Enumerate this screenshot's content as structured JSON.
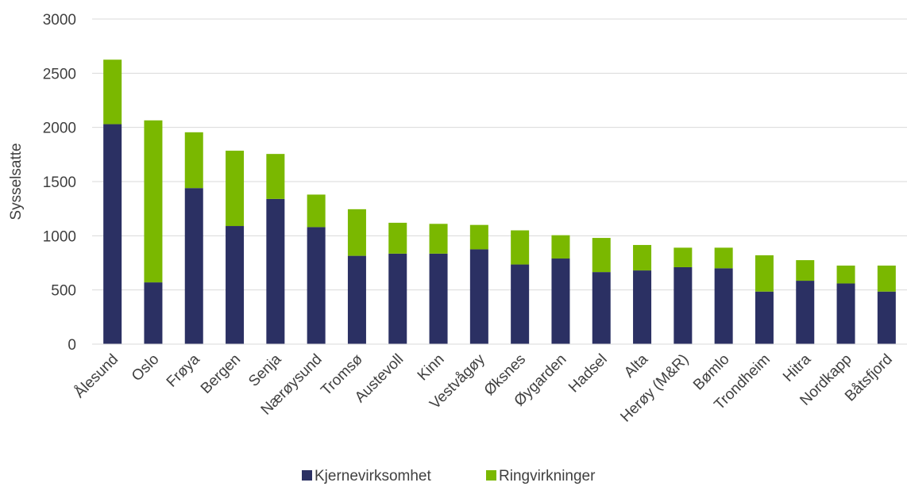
{
  "chart_data": {
    "type": "bar",
    "stacked": true,
    "title": "",
    "xlabel": "",
    "ylabel": "Sysselsatte",
    "ylim": [
      0,
      3000
    ],
    "yticks": [
      0,
      500,
      1000,
      1500,
      2000,
      2500,
      3000
    ],
    "grid": true,
    "legend_position": "bottom",
    "categories": [
      "Ålesund",
      "Oslo",
      "Frøya",
      "Bergen",
      "Senja",
      "Nærøysund",
      "Tromsø",
      "Austevoll",
      "Kinn",
      "Vestvågøy",
      "Øksnes",
      "Øygarden",
      "Hadsel",
      "Alta",
      "Herøy (M&R)",
      "Bømlo",
      "Trondheim",
      "Hitra",
      "Nordkapp",
      "Båtsfjord"
    ],
    "series": [
      {
        "name": "Kjernevirksomhet",
        "color": "#2b3063",
        "values": [
          2030,
          570,
          1440,
          1090,
          1340,
          1080,
          815,
          835,
          835,
          875,
          735,
          790,
          665,
          680,
          710,
          700,
          485,
          585,
          560,
          485
        ]
      },
      {
        "name": "Ringvirkninger",
        "color": "#7ab800",
        "values": [
          595,
          1495,
          515,
          695,
          415,
          300,
          430,
          285,
          275,
          225,
          315,
          215,
          315,
          235,
          180,
          190,
          335,
          190,
          165,
          240
        ]
      }
    ]
  }
}
